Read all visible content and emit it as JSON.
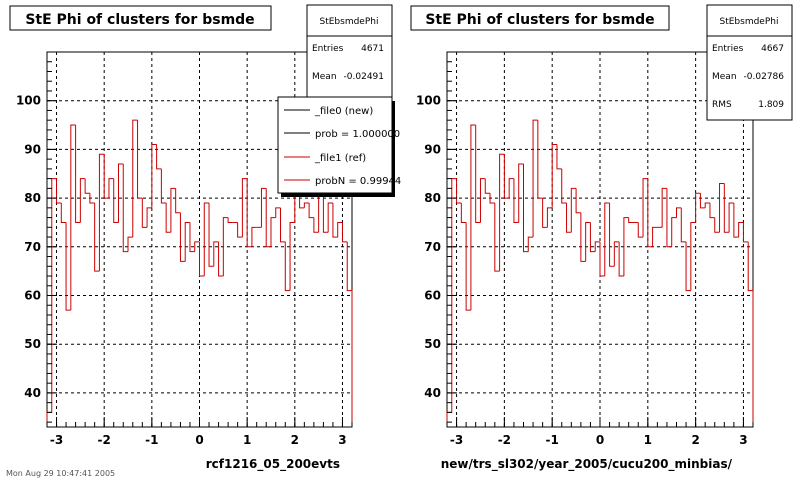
{
  "footer_text": "Mon Aug 29 10:47:41 2005",
  "chart_data": [
    {
      "type": "line",
      "style": "step-histogram",
      "title": "StE Phi of clusters for bsmde",
      "xlabel": "rcf1216_05_200evts",
      "ylabel": "",
      "xlim": [
        -3.2,
        3.2
      ],
      "ylim": [
        33,
        110
      ],
      "xticks": [
        "-3",
        "-2",
        "-1",
        "0",
        "1",
        "2",
        "3"
      ],
      "yticks": [
        "40",
        "50",
        "60",
        "70",
        "80",
        "90",
        "100"
      ],
      "grid": true,
      "series_color": "#cc0000",
      "stats": {
        "title": "StEbsmdePhi",
        "rows": [
          {
            "label": "Entries",
            "value": "4671"
          },
          {
            "label": "Mean",
            "value": "-0.02491"
          }
        ]
      },
      "legend": {
        "placement": "top-right",
        "entries": [
          {
            "label": "_file0 (new)",
            "color": "#000000"
          },
          {
            "label": "prob = 1.000000",
            "color": "#000000"
          },
          {
            "label": "_file1 (ref)",
            "color": "#cc0000"
          },
          {
            "label": "probN = 0.99944",
            "color": "#cc0000"
          }
        ]
      },
      "series": [
        {
          "x": [
            -3.2,
            -3.1,
            -3.0,
            -2.9,
            -2.8,
            -2.7,
            -2.6,
            -2.5,
            -2.4,
            -2.3,
            -2.2,
            -2.1,
            -2.0,
            -1.9,
            -1.8,
            -1.7,
            -1.6,
            -1.5,
            -1.4,
            -1.3,
            -1.2,
            -1.1,
            -1.0,
            -0.9,
            -0.8,
            -0.7,
            -0.6,
            -0.5,
            -0.4,
            -0.3,
            -0.2,
            -0.1,
            0.0,
            0.1,
            0.2,
            0.3,
            0.4,
            0.5,
            0.6,
            0.7,
            0.8,
            0.9,
            1.0,
            1.1,
            1.2,
            1.3,
            1.4,
            1.5,
            1.6,
            1.7,
            1.8,
            1.9,
            2.0,
            2.1,
            2.2,
            2.3,
            2.4,
            2.5,
            2.6,
            2.7,
            2.8,
            2.9,
            3.0,
            3.1
          ],
          "values": [
            36,
            84,
            79,
            75,
            57,
            95,
            75,
            84,
            81,
            79,
            65,
            89,
            80,
            84,
            75,
            87,
            69,
            72,
            96,
            80,
            74,
            78,
            91,
            86,
            79,
            73,
            82,
            77,
            67,
            75,
            69,
            71,
            64,
            79,
            66,
            71,
            64,
            76,
            75,
            75,
            72,
            84,
            70,
            74,
            74,
            82,
            70,
            76,
            78,
            71,
            61,
            75,
            81,
            78,
            79,
            76,
            73,
            83,
            73,
            79,
            72,
            75,
            71,
            61
          ]
        }
      ]
    },
    {
      "type": "line",
      "style": "step-histogram",
      "title": "StE Phi of clusters for bsmde",
      "xlabel": "new/trs_sl302/year_2005/cucu200_minbias/",
      "ylabel": "",
      "xlim": [
        -3.2,
        3.2
      ],
      "ylim": [
        33,
        110
      ],
      "xticks": [
        "-3",
        "-2",
        "-1",
        "0",
        "1",
        "2",
        "3"
      ],
      "yticks": [
        "40",
        "50",
        "60",
        "70",
        "80",
        "90",
        "100"
      ],
      "grid": true,
      "series_color": "#cc0000",
      "stats": {
        "title": "StEbsmdePhi",
        "rows": [
          {
            "label": "Entries",
            "value": "4667"
          },
          {
            "label": "Mean",
            "value": "-0.02786"
          },
          {
            "label": "RMS",
            "value": "1.809"
          }
        ]
      },
      "series": [
        {
          "x": [
            -3.2,
            -3.1,
            -3.0,
            -2.9,
            -2.8,
            -2.7,
            -2.6,
            -2.5,
            -2.4,
            -2.3,
            -2.2,
            -2.1,
            -2.0,
            -1.9,
            -1.8,
            -1.7,
            -1.6,
            -1.5,
            -1.4,
            -1.3,
            -1.2,
            -1.1,
            -1.0,
            -0.9,
            -0.8,
            -0.7,
            -0.6,
            -0.5,
            -0.4,
            -0.3,
            -0.2,
            -0.1,
            0.0,
            0.1,
            0.2,
            0.3,
            0.4,
            0.5,
            0.6,
            0.7,
            0.8,
            0.9,
            1.0,
            1.1,
            1.2,
            1.3,
            1.4,
            1.5,
            1.6,
            1.7,
            1.8,
            1.9,
            2.0,
            2.1,
            2.2,
            2.3,
            2.4,
            2.5,
            2.6,
            2.7,
            2.8,
            2.9,
            3.0,
            3.1
          ],
          "values": [
            36,
            84,
            79,
            75,
            57,
            95,
            75,
            84,
            81,
            79,
            65,
            89,
            80,
            84,
            75,
            87,
            69,
            72,
            96,
            80,
            74,
            78,
            91,
            86,
            79,
            73,
            82,
            77,
            67,
            75,
            69,
            71,
            64,
            79,
            66,
            71,
            64,
            76,
            75,
            75,
            72,
            84,
            70,
            74,
            74,
            82,
            70,
            76,
            78,
            71,
            61,
            75,
            81,
            78,
            79,
            76,
            73,
            83,
            73,
            79,
            72,
            75,
            71,
            61
          ]
        }
      ]
    }
  ]
}
